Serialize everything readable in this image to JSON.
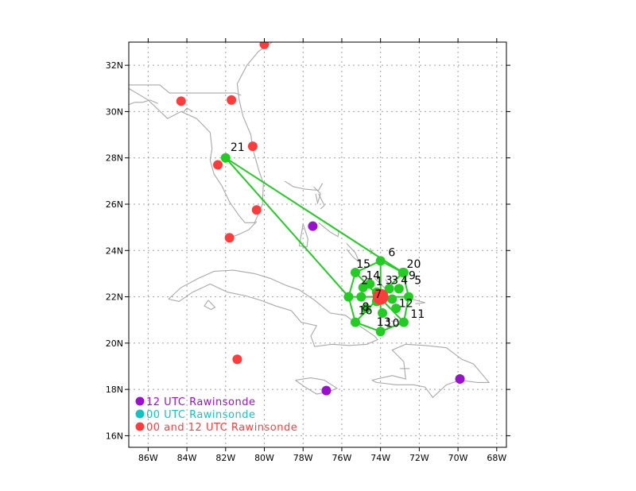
{
  "map": {
    "lon_range": [
      -87,
      -67.5
    ],
    "lat_range": [
      15.5,
      33
    ],
    "lon_ticks": [
      -86,
      -84,
      -82,
      -80,
      -78,
      -76,
      -74,
      -72,
      -70,
      -68
    ],
    "lon_tick_labels": [
      "86W",
      "84W",
      "82W",
      "80W",
      "78W",
      "76W",
      "74W",
      "72W",
      "70W",
      "68W"
    ],
    "lat_ticks": [
      16,
      18,
      20,
      22,
      24,
      26,
      28,
      30,
      32
    ],
    "lat_tick_labels": [
      "16N",
      "18N",
      "20N",
      "22N",
      "24N",
      "26N",
      "28N",
      "30N",
      "32N"
    ],
    "grid": true,
    "colors": {
      "coast": "#a8a8a8",
      "grid": "#a0a0a0",
      "track": "#22cc22",
      "rawin_12": "#9a0fd0",
      "rawin_00": "#11c4c4",
      "rawin_00_12": "#ff3b3b"
    }
  },
  "legend": {
    "placement": "bottom-left",
    "items": [
      {
        "label": "12 UTC Rawinsonde",
        "color": "#9a0fd0"
      },
      {
        "label": "00 UTC Rawinsonde",
        "color": "#11c4c4"
      },
      {
        "label": "00 and 12 UTC Rawinsonde",
        "color": "#ff3b3b"
      }
    ]
  },
  "rawinsondes": [
    {
      "lon": -80.0,
      "lat": 32.9,
      "type": "00_12"
    },
    {
      "lon": -84.3,
      "lat": 30.45,
      "type": "00_12"
    },
    {
      "lon": -81.7,
      "lat": 30.5,
      "type": "00_12"
    },
    {
      "lon": -80.6,
      "lat": 28.5,
      "type": "00_12"
    },
    {
      "lon": -82.4,
      "lat": 27.7,
      "type": "00_12"
    },
    {
      "lon": -80.4,
      "lat": 25.75,
      "type": "00_12"
    },
    {
      "lon": -81.8,
      "lat": 24.55,
      "type": "00_12"
    },
    {
      "lon": -81.4,
      "lat": 19.3,
      "type": "00_12"
    },
    {
      "lon": -77.5,
      "lat": 25.05,
      "type": "12"
    },
    {
      "lon": -76.8,
      "lat": 17.95,
      "type": "12"
    },
    {
      "lon": -69.9,
      "lat": 18.45,
      "type": "12"
    }
  ],
  "center": {
    "lon": -74.0,
    "lat": 22.0
  },
  "dropsondes": [
    {
      "id": "1",
      "lon": -74.2,
      "lat": 22.2
    },
    {
      "id": "2",
      "lon": -74.9,
      "lat": 22.4
    },
    {
      "id": "3",
      "lon": -73.55,
      "lat": 22.35
    },
    {
      "id": "4",
      "lon": -73.05,
      "lat": 22.35
    },
    {
      "id": "5",
      "lon": -72.55,
      "lat": 22.0
    },
    {
      "id": "6",
      "lon": -74.0,
      "lat": 23.55
    },
    {
      "id": "7",
      "lon": -74.2,
      "lat": 21.8
    },
    {
      "id": "8",
      "lon": -74.75,
      "lat": 21.5
    },
    {
      "id": "9",
      "lon": -72.8,
      "lat": 23.05
    },
    {
      "id": "10",
      "lon": -74.0,
      "lat": 20.5
    },
    {
      "id": "11",
      "lon": -72.8,
      "lat": 20.9
    },
    {
      "id": "12",
      "lon": -73.2,
      "lat": 21.5
    },
    {
      "id": "13",
      "lon": -75.3,
      "lat": 20.9
    },
    {
      "id": "14",
      "lon": -74.55,
      "lat": 22.55
    },
    {
      "id": "15",
      "lon": -75.3,
      "lat": 23.05
    },
    {
      "id": "16",
      "lon": -75.0,
      "lat": 22.0
    },
    {
      "id": "17",
      "lon": -73.9,
      "lat": 21.3
    },
    {
      "id": "18",
      "lon": -73.4,
      "lat": 21.9
    },
    {
      "id": "19",
      "lon": -75.65,
      "lat": 22.0
    },
    {
      "id": "20",
      "lon": -72.85,
      "lat": 23.05
    },
    {
      "id": "21",
      "lon": -82.0,
      "lat": 28.0
    }
  ],
  "labels": [
    {
      "text": "1",
      "lon": -74.25,
      "lat": 22.5
    },
    {
      "text": "2",
      "lon": -75.0,
      "lat": 22.55
    },
    {
      "text": "3",
      "lon": -73.45,
      "lat": 22.55
    },
    {
      "text": "3",
      "lon": -73.75,
      "lat": 22.55
    },
    {
      "text": "4",
      "lon": -72.95,
      "lat": 22.55
    },
    {
      "text": "5",
      "lon": -72.25,
      "lat": 22.55
    },
    {
      "text": "6",
      "lon": -73.6,
      "lat": 23.75
    },
    {
      "text": "7",
      "lon": -74.3,
      "lat": 21.95
    },
    {
      "text": "8",
      "lon": -74.95,
      "lat": 21.4
    },
    {
      "text": "9",
      "lon": -72.55,
      "lat": 22.75
    },
    {
      "text": "10",
      "lon": -73.75,
      "lat": 20.7
    },
    {
      "text": "11",
      "lon": -72.45,
      "lat": 21.1
    },
    {
      "text": "12",
      "lon": -73.05,
      "lat": 21.55
    },
    {
      "text": "13",
      "lon": -74.2,
      "lat": 20.75
    },
    {
      "text": "14",
      "lon": -74.75,
      "lat": 22.75
    },
    {
      "text": "15",
      "lon": -75.25,
      "lat": 23.25
    },
    {
      "text": "16",
      "lon": -75.15,
      "lat": 21.25
    },
    {
      "text": "20",
      "lon": -72.65,
      "lat": 23.25
    },
    {
      "text": "21",
      "lon": -81.75,
      "lat": 28.3
    }
  ],
  "tracks": [
    [
      [
        -82.0,
        28.0
      ],
      [
        -72.85,
        23.05
      ]
    ],
    [
      [
        -82.0,
        28.0
      ],
      [
        -75.65,
        22.0
      ]
    ],
    [
      [
        -74.0,
        23.55
      ],
      [
        -72.85,
        23.05
      ],
      [
        -72.55,
        22.0
      ],
      [
        -72.8,
        20.9
      ],
      [
        -74.0,
        20.5
      ],
      [
        -75.3,
        20.9
      ],
      [
        -75.65,
        22.0
      ],
      [
        -75.3,
        23.05
      ],
      [
        -74.0,
        23.55
      ]
    ],
    [
      [
        -74.0,
        23.55
      ],
      [
        -74.0,
        20.5
      ]
    ],
    [
      [
        -75.3,
        23.05
      ],
      [
        -72.8,
        20.9
      ]
    ],
    [
      [
        -72.85,
        23.05
      ],
      [
        -75.3,
        20.9
      ]
    ],
    [
      [
        -75.65,
        22.0
      ],
      [
        -72.55,
        22.0
      ]
    ]
  ],
  "coastlines": [
    [
      [
        -87,
        31.0
      ],
      [
        -86.0,
        30.5
      ],
      [
        -85.0,
        29.7
      ],
      [
        -84.3,
        30.0
      ],
      [
        -83.5,
        29.7
      ],
      [
        -82.8,
        29.1
      ],
      [
        -82.7,
        28.4
      ],
      [
        -82.8,
        27.9
      ],
      [
        -82.6,
        27.3
      ],
      [
        -82.2,
        26.8
      ],
      [
        -81.8,
        26.1
      ],
      [
        -81.3,
        25.5
      ],
      [
        -81.0,
        25.2
      ],
      [
        -80.5,
        25.2
      ],
      [
        -80.3,
        25.6
      ],
      [
        -80.1,
        26.0
      ],
      [
        -80.05,
        26.9
      ],
      [
        -80.3,
        27.5
      ],
      [
        -80.6,
        28.4
      ],
      [
        -80.7,
        29.0
      ],
      [
        -81.1,
        29.8
      ],
      [
        -81.3,
        30.5
      ],
      [
        -81.4,
        31.2
      ],
      [
        -80.9,
        32.0
      ],
      [
        -80.3,
        32.6
      ],
      [
        -79.6,
        33.0
      ]
    ],
    [
      [
        -87,
        31.15
      ],
      [
        -85.4,
        31.15
      ],
      [
        -84.9,
        30.8
      ],
      [
        -81.5,
        30.8
      ],
      [
        -81.2,
        30.7
      ]
    ],
    [
      [
        -85.5,
        30.35
      ],
      [
        -85.9,
        30.5
      ],
      [
        -86.3,
        30.4
      ],
      [
        -86.7,
        30.4
      ],
      [
        -87,
        30.3
      ]
    ],
    [
      [
        -84.2,
        29.95
      ],
      [
        -84.0,
        30.15
      ],
      [
        -83.7,
        30.0
      ]
    ],
    [
      [
        -81.8,
        24.55
      ],
      [
        -81.3,
        24.7
      ],
      [
        -80.8,
        24.9
      ],
      [
        -80.4,
        25.25
      ]
    ],
    [
      [
        -84.95,
        21.9
      ],
      [
        -84.3,
        22.4
      ],
      [
        -83.4,
        22.8
      ],
      [
        -82.6,
        23.1
      ],
      [
        -81.6,
        23.15
      ],
      [
        -80.5,
        23.0
      ],
      [
        -79.7,
        22.8
      ],
      [
        -78.9,
        22.5
      ],
      [
        -78.2,
        22.3
      ],
      [
        -77.4,
        21.85
      ],
      [
        -76.6,
        21.3
      ],
      [
        -75.8,
        21.2
      ],
      [
        -75.1,
        20.75
      ],
      [
        -74.3,
        20.3
      ],
      [
        -74.15,
        20.15
      ],
      [
        -74.7,
        19.95
      ],
      [
        -75.6,
        19.9
      ],
      [
        -76.5,
        19.95
      ],
      [
        -77.4,
        19.85
      ],
      [
        -77.6,
        20.3
      ],
      [
        -77.3,
        20.75
      ],
      [
        -78.1,
        20.9
      ],
      [
        -78.6,
        21.4
      ],
      [
        -79.4,
        21.6
      ],
      [
        -80.2,
        21.85
      ],
      [
        -81.0,
        22.05
      ],
      [
        -81.9,
        22.2
      ],
      [
        -82.8,
        22.55
      ],
      [
        -83.7,
        22.2
      ],
      [
        -84.4,
        21.8
      ],
      [
        -84.95,
        21.9
      ]
    ],
    [
      [
        -82.9,
        21.85
      ],
      [
        -82.55,
        21.55
      ],
      [
        -82.75,
        21.45
      ],
      [
        -83.1,
        21.6
      ],
      [
        -82.9,
        21.85
      ]
    ],
    [
      [
        -78.4,
        18.4
      ],
      [
        -77.6,
        18.5
      ],
      [
        -76.9,
        18.4
      ],
      [
        -76.25,
        18.05
      ],
      [
        -76.7,
        17.9
      ],
      [
        -77.3,
        17.8
      ],
      [
        -77.9,
        18.1
      ],
      [
        -78.4,
        18.4
      ]
    ],
    [
      [
        -74.45,
        18.4
      ],
      [
        -73.4,
        18.6
      ],
      [
        -72.7,
        18.45
      ],
      [
        -72.8,
        19.2
      ],
      [
        -73.4,
        19.7
      ],
      [
        -72.7,
        19.95
      ],
      [
        -71.7,
        19.9
      ],
      [
        -70.6,
        19.8
      ],
      [
        -69.8,
        19.3
      ],
      [
        -69.2,
        19.1
      ],
      [
        -68.7,
        18.6
      ],
      [
        -68.4,
        18.3
      ],
      [
        -69.0,
        18.3
      ],
      [
        -69.9,
        18.4
      ],
      [
        -70.6,
        18.2
      ],
      [
        -71.3,
        17.65
      ],
      [
        -71.7,
        18.1
      ],
      [
        -72.3,
        18.2
      ],
      [
        -73.2,
        18.2
      ],
      [
        -74.2,
        18.3
      ],
      [
        -74.45,
        18.4
      ]
    ],
    [
      [
        -73.0,
        18.9
      ],
      [
        -72.5,
        18.9
      ]
    ],
    [
      [
        -78.95,
        27.0
      ],
      [
        -78.5,
        26.75
      ],
      [
        -77.9,
        26.65
      ],
      [
        -77.2,
        26.6
      ],
      [
        -77.0,
        26.9
      ]
    ],
    [
      [
        -77.45,
        26.75
      ],
      [
        -77.1,
        26.45
      ],
      [
        -77.25,
        26.05
      ],
      [
        -77.35,
        26.45
      ]
    ],
    [
      [
        -78.0,
        25.15
      ],
      [
        -77.75,
        24.5
      ],
      [
        -77.8,
        24.15
      ],
      [
        -78.2,
        24.2
      ],
      [
        -78.05,
        24.9
      ],
      [
        -78.0,
        25.15
      ]
    ],
    [
      [
        -77.2,
        25.2
      ],
      [
        -76.6,
        24.8
      ],
      [
        -76.2,
        24.6
      ],
      [
        -76.15,
        24.85
      ],
      [
        -76.75,
        25.15
      ],
      [
        -77.1,
        25.35
      ]
    ],
    [
      [
        -75.75,
        24.3
      ],
      [
        -75.3,
        23.9
      ],
      [
        -75.1,
        23.5
      ],
      [
        -75.4,
        23.7
      ],
      [
        -75.75,
        24.05
      ]
    ],
    [
      [
        -74.55,
        24.1
      ],
      [
        -74.4,
        23.9
      ],
      [
        -74.55,
        23.85
      ]
    ],
    [
      [
        -73.75,
        22.75
      ],
      [
        -73.45,
        22.45
      ],
      [
        -73.75,
        22.35
      ],
      [
        -74.3,
        22.8
      ]
    ],
    [
      [
        -73.3,
        21.15
      ],
      [
        -73.1,
        20.95
      ],
      [
        -73.45,
        20.95
      ]
    ],
    [
      [
        -72.4,
        21.9
      ],
      [
        -71.7,
        21.75
      ],
      [
        -72.2,
        21.7
      ]
    ],
    [
      [
        -77.2,
        26.45
      ],
      [
        -76.9,
        25.95
      ],
      [
        -77.1,
        25.8
      ]
    ]
  ]
}
